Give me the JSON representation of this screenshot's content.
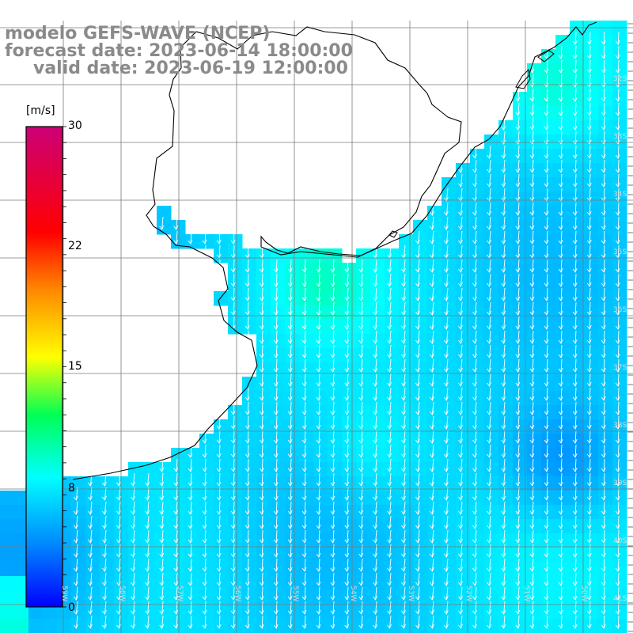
{
  "header": {
    "title": "modelo GEFS-WAVE (NCEP)",
    "forecast": "forecast date: 2023-06-14 18:00:00",
    "valid": "valid date: 2023-06-19 12:00:00"
  },
  "colorbar": {
    "unit": "[m/s]",
    "ticks": [
      "30",
      "22",
      "15",
      "8",
      "0"
    ],
    "min": 0,
    "max": 30,
    "colors": [
      "#0000ff",
      "#0088ff",
      "#00ffff",
      "#00ff00",
      "#ffff00",
      "#ff8800",
      "#ff0000",
      "#cc0077"
    ]
  },
  "map": {
    "lat_labels": [
      "32S",
      "33S",
      "34S",
      "35S",
      "36S",
      "37S",
      "38S",
      "39S",
      "40S",
      "41S"
    ],
    "lon_labels": [
      "59W",
      "58W",
      "57W",
      "56W",
      "55W",
      "54W",
      "53W",
      "52W",
      "51W",
      "50W"
    ],
    "wind_direction": "southward (north to south, slightly southwest)",
    "speed_range": "about 4 to 9 m/s"
  }
}
